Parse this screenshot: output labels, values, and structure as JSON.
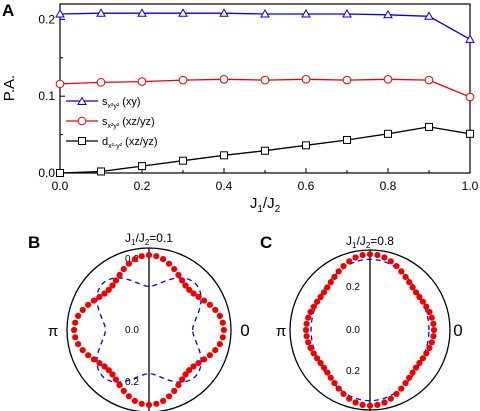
{
  "panels": {
    "a": {
      "letter": "A"
    },
    "b": {
      "letter": "B",
      "title_prefix": "J",
      "title_sub1": "1",
      "title_slash": "/J",
      "title_sub2": "2",
      "title_value": "=0.1"
    },
    "c": {
      "letter": "C",
      "title_prefix": "J",
      "title_sub1": "1",
      "title_slash": "/J",
      "title_sub2": "2",
      "title_value": "=0.8"
    }
  },
  "chart_data": [
    {
      "type": "line",
      "xlabel": {
        "main": "J",
        "sub1": "1",
        "mid": "/J",
        "sub2": "2"
      },
      "ylabel": "P.A.",
      "xlim": [
        0,
        1.0
      ],
      "ylim": [
        0,
        0.22
      ],
      "xticks": [
        "0.0",
        "0.2",
        "0.4",
        "0.6",
        "0.8",
        "1.0"
      ],
      "yticks": [
        "0.0",
        "0.1",
        "0.2"
      ],
      "x": [
        0.0,
        0.1,
        0.2,
        0.3,
        0.4,
        0.5,
        0.6,
        0.7,
        0.8,
        0.9,
        1.0
      ],
      "legend_position": "left",
      "series": [
        {
          "name": "s x²y² (xy)",
          "label_main": "s",
          "label_sub": "x²y²",
          "label_tail": " (xy)",
          "marker": "triangle",
          "color": "#0000ee",
          "values": [
            0.207,
            0.208,
            0.208,
            0.208,
            0.208,
            0.207,
            0.207,
            0.207,
            0.206,
            0.204,
            0.174
          ]
        },
        {
          "name": "s x²y² (xz/yz)",
          "label_main": "s",
          "label_sub": "x²y²",
          "label_tail": " (xz/yz)",
          "marker": "circle",
          "color": "#ee0000",
          "values": [
            0.116,
            0.118,
            0.119,
            0.121,
            0.122,
            0.121,
            0.122,
            0.121,
            0.122,
            0.121,
            0.099
          ]
        },
        {
          "name": "d x²-y² (xz/yz)",
          "label_main": "d",
          "label_sub": "x²-y²",
          "label_tail": " (xz/yz)",
          "marker": "square",
          "color": "#000000",
          "values": [
            0.0,
            0.002,
            0.009,
            0.016,
            0.023,
            0.029,
            0.036,
            0.043,
            0.051,
            0.06,
            0.051
          ]
        }
      ]
    },
    {
      "type": "scatter",
      "subtype": "polar",
      "title": "J1/J2=0.1",
      "rlim": [
        0,
        0.3
      ],
      "rticks": [
        "0.2",
        "0.0",
        "0.2"
      ],
      "angle_labels": {
        "right": "0",
        "left": "π"
      },
      "dots": {
        "color": "#ee0000",
        "base": 0.241,
        "cos2": 0.0,
        "cos4": 0.033,
        "count": 64
      },
      "fit": {
        "color": "#0000ee",
        "style": "dashed",
        "base": 0.2,
        "cos2": 0.0,
        "cos4": -0.04
      }
    },
    {
      "type": "scatter",
      "subtype": "polar",
      "title": "J1/J2=0.8",
      "rlim": [
        0,
        0.3
      ],
      "rticks": [
        "0.2",
        "0.0",
        "0.2"
      ],
      "angle_labels": {
        "right": "0",
        "left": "π"
      },
      "dots": {
        "color": "#ee0000",
        "base": 0.244,
        "cos2": -0.022,
        "cos4": 0.018,
        "count": 64
      },
      "fit": {
        "color": "#0000ee",
        "style": "dashed",
        "base": 0.238,
        "cos2": -0.022,
        "cos4": 0.005
      }
    }
  ]
}
